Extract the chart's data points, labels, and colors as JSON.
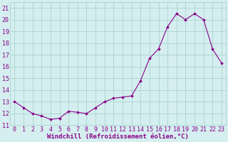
{
  "x": [
    0,
    1,
    2,
    3,
    4,
    5,
    6,
    7,
    8,
    9,
    10,
    11,
    12,
    13,
    14,
    15,
    16,
    17,
    18,
    19,
    20,
    21,
    22,
    23
  ],
  "y": [
    13.0,
    12.5,
    12.0,
    11.8,
    11.5,
    11.6,
    12.2,
    12.1,
    12.0,
    12.5,
    13.0,
    13.3,
    13.4,
    13.5,
    14.8,
    16.7,
    17.5,
    19.4,
    20.5,
    20.0,
    20.5,
    20.0,
    17.5,
    16.3
  ],
  "line_color": "#880088",
  "marker": "D",
  "marker_size": 1.8,
  "bg_color": "#d5eef0",
  "grid_color": "#a0cfc8",
  "xlabel": "Windchill (Refroidissement éolien,°C)",
  "xlabel_fontsize": 6.5,
  "xlabel_color": "#880088",
  "tick_label_color": "#880088",
  "tick_fontsize": 6.0,
  "ylim": [
    11,
    21.5
  ],
  "xlim": [
    -0.5,
    23.5
  ],
  "yticks": [
    11,
    12,
    13,
    14,
    15,
    16,
    17,
    18,
    19,
    20,
    21
  ],
  "xticks": [
    0,
    1,
    2,
    3,
    4,
    5,
    6,
    7,
    8,
    9,
    10,
    11,
    12,
    13,
    14,
    15,
    16,
    17,
    18,
    19,
    20,
    21,
    22,
    23
  ]
}
